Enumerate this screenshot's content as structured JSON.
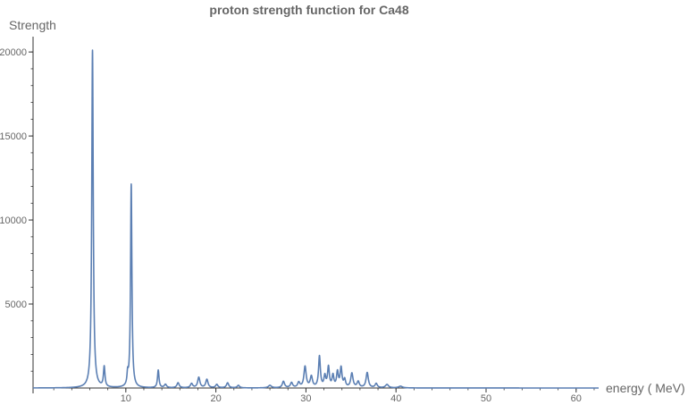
{
  "chart_data": {
    "type": "line",
    "title": "proton  strength  function  for  Ca48",
    "xlabel": "energy ( MeV)",
    "ylabel": "Strength",
    "xlim": [
      -0.3,
      62.5
    ],
    "ylim": [
      0,
      20700
    ],
    "x_ticks": [
      10,
      20,
      30,
      40,
      50,
      60
    ],
    "y_ticks": [
      5000,
      10000,
      15000,
      20000
    ],
    "x_minor_step": 2,
    "y_minor_step": 1000,
    "grid": false,
    "line_color": "#5b7fb3",
    "series": [
      {
        "peaks": [
          {
            "x": 6.3,
            "y": 20100,
            "w": 0.1
          },
          {
            "x": 7.6,
            "y": 1200,
            "w": 0.1
          },
          {
            "x": 10.2,
            "y": 650,
            "w": 0.08
          },
          {
            "x": 10.6,
            "y": 12100,
            "w": 0.09
          },
          {
            "x": 13.6,
            "y": 1050,
            "w": 0.1
          },
          {
            "x": 14.4,
            "y": 200,
            "w": 0.15
          },
          {
            "x": 15.8,
            "y": 300,
            "w": 0.15
          },
          {
            "x": 17.3,
            "y": 250,
            "w": 0.15
          },
          {
            "x": 18.1,
            "y": 620,
            "w": 0.15
          },
          {
            "x": 19.0,
            "y": 500,
            "w": 0.15
          },
          {
            "x": 20.1,
            "y": 200,
            "w": 0.15
          },
          {
            "x": 21.3,
            "y": 300,
            "w": 0.15
          },
          {
            "x": 22.5,
            "y": 150,
            "w": 0.15
          },
          {
            "x": 26.0,
            "y": 150,
            "w": 0.2
          },
          {
            "x": 27.5,
            "y": 380,
            "w": 0.15
          },
          {
            "x": 28.4,
            "y": 300,
            "w": 0.15
          },
          {
            "x": 29.2,
            "y": 300,
            "w": 0.15
          },
          {
            "x": 29.9,
            "y": 1250,
            "w": 0.15
          },
          {
            "x": 30.6,
            "y": 650,
            "w": 0.15
          },
          {
            "x": 31.5,
            "y": 1850,
            "w": 0.12
          },
          {
            "x": 32.1,
            "y": 650,
            "w": 0.12
          },
          {
            "x": 32.5,
            "y": 1200,
            "w": 0.12
          },
          {
            "x": 33.0,
            "y": 700,
            "w": 0.12
          },
          {
            "x": 33.5,
            "y": 900,
            "w": 0.12
          },
          {
            "x": 33.9,
            "y": 1150,
            "w": 0.12
          },
          {
            "x": 34.3,
            "y": 450,
            "w": 0.12
          },
          {
            "x": 35.1,
            "y": 850,
            "w": 0.15
          },
          {
            "x": 35.8,
            "y": 350,
            "w": 0.15
          },
          {
            "x": 36.8,
            "y": 900,
            "w": 0.15
          },
          {
            "x": 37.8,
            "y": 250,
            "w": 0.15
          },
          {
            "x": 39.0,
            "y": 200,
            "w": 0.2
          },
          {
            "x": 40.5,
            "y": 100,
            "w": 0.25
          }
        ]
      }
    ]
  }
}
